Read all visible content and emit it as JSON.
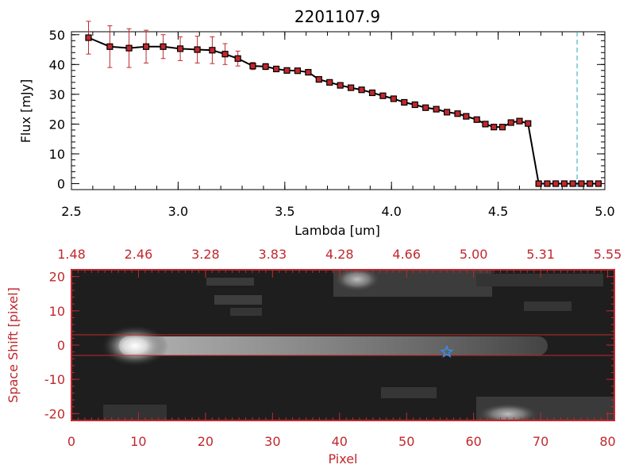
{
  "chart_data": [
    {
      "type": "line",
      "title": "2201107.9",
      "xlabel": "Lambda [um]",
      "ylabel": "Flux [mJy]",
      "xlim": [
        2.5,
        5.0
      ],
      "ylim": [
        -2,
        51
      ],
      "xticks": [
        "2.5",
        "3.0",
        "3.5",
        "4.0",
        "4.5",
        "5.0"
      ],
      "yticks": [
        "0",
        "10",
        "20",
        "30",
        "40",
        "50"
      ],
      "reference_line_x": 4.87,
      "colors": {
        "line": "#000000",
        "marker": "#c0282d",
        "error": "#c0282d",
        "reference": "#2aa6b8"
      },
      "x": [
        2.58,
        2.68,
        2.77,
        2.85,
        2.93,
        3.01,
        3.09,
        3.16,
        3.22,
        3.28,
        3.35,
        3.41,
        3.46,
        3.51,
        3.56,
        3.61,
        3.66,
        3.71,
        3.76,
        3.81,
        3.86,
        3.91,
        3.96,
        4.01,
        4.06,
        4.11,
        4.16,
        4.21,
        4.26,
        4.31,
        4.35,
        4.4,
        4.44,
        4.48,
        4.52,
        4.56,
        4.6,
        4.64,
        4.69,
        4.73,
        4.77,
        4.81,
        4.85,
        4.89,
        4.93,
        4.97
      ],
      "y": [
        49,
        46,
        45.5,
        46,
        46,
        45.3,
        45,
        44.8,
        43.5,
        42,
        39.5,
        39.3,
        38.5,
        38,
        37.9,
        37.4,
        35,
        34,
        33,
        32.2,
        31.5,
        30.5,
        29.5,
        28.5,
        27.3,
        26.5,
        25.5,
        25,
        24,
        23.5,
        22.6,
        21.5,
        20,
        19,
        19,
        20.5,
        21,
        20.2,
        0,
        0,
        0,
        0,
        0,
        0,
        0,
        0
      ],
      "yerr": [
        5.5,
        7,
        6.5,
        5.5,
        4,
        4,
        4.5,
        4.5,
        3.5,
        2.5,
        1.2,
        1,
        0.8,
        0.6,
        0.6,
        0.6,
        0.6,
        0.6,
        0.6,
        0.5,
        0.5,
        0.5,
        0.5,
        0.5,
        0.5,
        0.5,
        0.5,
        0.5,
        0.5,
        0.5,
        0.5,
        0.5,
        0.5,
        0.5,
        0.5,
        0.5,
        0.5,
        0.5,
        0,
        0,
        0,
        0,
        0,
        0,
        0,
        0
      ]
    },
    {
      "type": "heatmap",
      "xlabel": "Pixel",
      "ylabel": "Space Shift [pixel]",
      "xlim": [
        0,
        81
      ],
      "ylim": [
        -22,
        22
      ],
      "xticks": [
        "0",
        "10",
        "20",
        "30",
        "40",
        "50",
        "60",
        "70",
        "80"
      ],
      "yticks": [
        "20",
        "10",
        "0",
        "-10",
        "-20"
      ],
      "top_axis_ticks": [
        "1.48",
        "2.46",
        "3.28",
        "3.83",
        "4.28",
        "4.66",
        "5.00",
        "5.31",
        "5.55"
      ],
      "extraction_window": [
        -3,
        3
      ],
      "marker": {
        "symbol": "star-icon",
        "x": 56,
        "y": -2
      },
      "colors": {
        "axes": "#c0282d",
        "window": "#c0282d",
        "marker": "#3a8ee8"
      }
    }
  ]
}
